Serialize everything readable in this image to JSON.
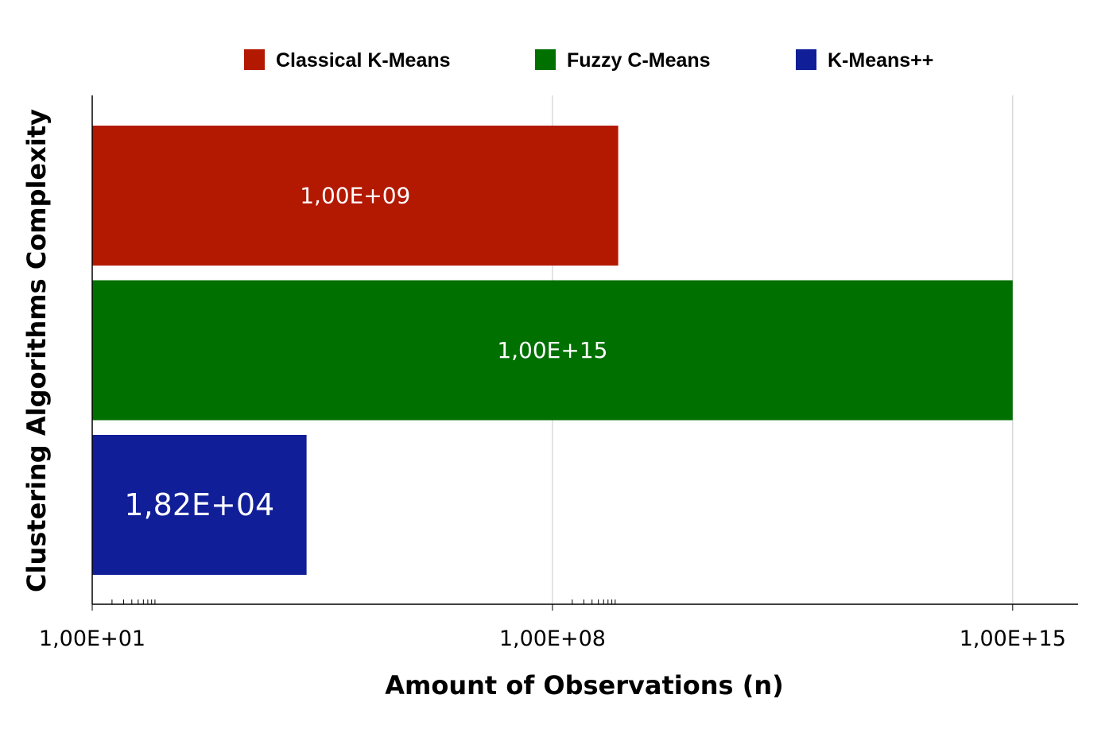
{
  "chart_data": {
    "type": "bar",
    "orientation": "horizontal",
    "x_scale": "log",
    "xlabel": "Amount of Observations (n)",
    "ylabel": "Clustering Algorithms Complexity",
    "xlim": [
      10,
      1000000000000000.0
    ],
    "x_ticks": [
      {
        "value": 10,
        "label": "1,00E+01"
      },
      {
        "value": 100000000.0,
        "label": "1,00E+08"
      },
      {
        "value": 1000000000000000.0,
        "label": "1,00E+15"
      }
    ],
    "legend_position": "top",
    "grid": true,
    "series": [
      {
        "name": "Classical K-Means",
        "value": 1000000000.0,
        "label": "1,00E+09",
        "color": "#b31800"
      },
      {
        "name": "Fuzzy C-Means",
        "value": 1000000000000000.0,
        "label": "1,00E+15",
        "color": "#007000"
      },
      {
        "name": "K-Means++",
        "value": 18200,
        "label": "1,82E+04",
        "color": "#101e98"
      }
    ]
  }
}
